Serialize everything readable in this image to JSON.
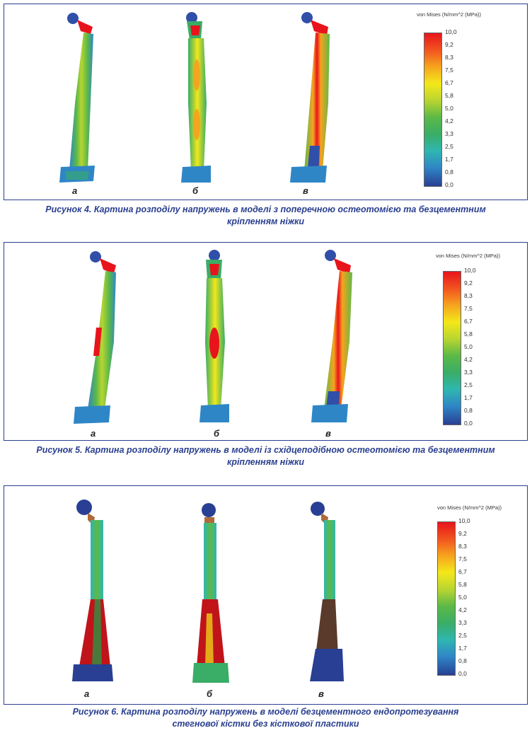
{
  "figures": [
    {
      "caption_line1": "Рисунок 4. Картина розподілу напружень в моделі з поперечною остеотомією та безцементним",
      "caption_line2": "кріпленням ніжки",
      "labels": [
        "а",
        "б",
        "в"
      ],
      "legend_title": "von Mises (N/mm^2 (MPa))",
      "ticks": [
        "10,0",
        "9,2",
        "8,3",
        "7,5",
        "6,7",
        "5,8",
        "5,0",
        "4,2",
        "3,3",
        "2,5",
        "1,7",
        "0,8",
        "0,0"
      ]
    },
    {
      "caption_line1": "Рисунок 5. Картина розподілу напружень в моделі із східцеподібною остеотомією та безцементним",
      "caption_line2": "кріпленням ніжки",
      "labels": [
        "а",
        "б",
        "в"
      ],
      "legend_title": "von Mises (N/mm^2 (MPa))",
      "ticks": [
        "10,0",
        "9,2",
        "8,3",
        "7,5",
        "6,7",
        "5,8",
        "5,0",
        "4,2",
        "3,3",
        "2,5",
        "1,7",
        "0,8",
        "0,0"
      ]
    },
    {
      "caption_line1": "Рисунок 6. Картина розподілу напружень в моделі безцементного ендопротезування",
      "caption_line2": "стегнової кістки без кісткової пластики",
      "labels": [
        "а",
        "б",
        "в"
      ],
      "legend_title": "von Mises (N/mm^2 (MPa))",
      "ticks": [
        "10,0",
        "9,2",
        "8,3",
        "7,5",
        "6,7",
        "5,8",
        "5,0",
        "4,2",
        "3,3",
        "2,5",
        "1,7",
        "0,8",
        "0,0"
      ]
    }
  ],
  "colors": {
    "frame": "#2a3f8f",
    "caption": "#2a3f8f",
    "stress_high": "#e8141c",
    "stress_mid": "#f3e81a",
    "stress_low": "#283f93"
  }
}
